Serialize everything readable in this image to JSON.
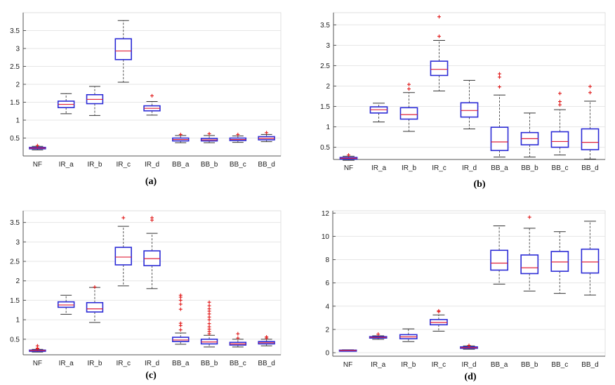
{
  "colors": {
    "box": "#2b2bd6",
    "median": "#e0203a",
    "outlier": "#e01818",
    "whisker": "#555555",
    "grid": "#e6e6e6",
    "axis": "#555555"
  },
  "chart_data": [
    {
      "type": "boxplot",
      "caption": "(a)",
      "categories": [
        "NF",
        "IR_a",
        "IR_b",
        "IR_c",
        "IR_d",
        "BB_a",
        "BB_b",
        "BB_c",
        "BB_d"
      ],
      "ylim": [
        0,
        4
      ],
      "yticks": [
        "0.5",
        "1",
        "1.5",
        "2",
        "2.5",
        "3",
        "3.5"
      ],
      "ytick_values": [
        0.5,
        1,
        1.5,
        2,
        2.5,
        3,
        3.5
      ],
      "grid": true,
      "boxes": [
        {
          "min": 0.17,
          "q1": 0.2,
          "median": 0.22,
          "q3": 0.24,
          "max": 0.27,
          "outliers": [
            0.29
          ]
        },
        {
          "min": 1.18,
          "q1": 1.35,
          "median": 1.44,
          "q3": 1.53,
          "max": 1.74,
          "outliers": []
        },
        {
          "min": 1.13,
          "q1": 1.46,
          "median": 1.58,
          "q3": 1.71,
          "max": 1.94,
          "outliers": []
        },
        {
          "min": 2.06,
          "q1": 2.69,
          "median": 2.93,
          "q3": 3.27,
          "max": 3.78,
          "outliers": []
        },
        {
          "min": 1.14,
          "q1": 1.26,
          "median": 1.33,
          "q3": 1.4,
          "max": 1.52,
          "outliers": [
            1.68
          ]
        },
        {
          "min": 0.37,
          "q1": 0.42,
          "median": 0.46,
          "q3": 0.5,
          "max": 0.57,
          "outliers": [
            0.6
          ]
        },
        {
          "min": 0.37,
          "q1": 0.42,
          "median": 0.45,
          "q3": 0.49,
          "max": 0.57,
          "outliers": [
            0.62
          ]
        },
        {
          "min": 0.38,
          "q1": 0.43,
          "median": 0.46,
          "q3": 0.5,
          "max": 0.56,
          "outliers": [
            0.6
          ]
        },
        {
          "min": 0.4,
          "q1": 0.45,
          "median": 0.49,
          "q3": 0.54,
          "max": 0.6,
          "outliers": [
            0.65
          ]
        }
      ]
    },
    {
      "type": "boxplot",
      "caption": "(b)",
      "categories": [
        "NF",
        "IR_a",
        "IR_b",
        "IR_c",
        "IR_d",
        "BB_a",
        "BB_b",
        "BB_c",
        "BB_d"
      ],
      "ylim": [
        0.2,
        3.8
      ],
      "yticks": [
        "0.5",
        "1",
        "1.5",
        "2",
        "2.5",
        "3",
        "3.5"
      ],
      "ytick_values": [
        0.5,
        1,
        1.5,
        2,
        2.5,
        3,
        3.5
      ],
      "grid": true,
      "boxes": [
        {
          "min": 0.18,
          "q1": 0.21,
          "median": 0.23,
          "q3": 0.25,
          "max": 0.28,
          "outliers": [
            0.31
          ]
        },
        {
          "min": 1.12,
          "q1": 1.34,
          "median": 1.42,
          "q3": 1.49,
          "max": 1.58,
          "outliers": []
        },
        {
          "min": 0.89,
          "q1": 1.19,
          "median": 1.3,
          "q3": 1.47,
          "max": 1.84,
          "outliers": [
            1.93,
            2.04
          ]
        },
        {
          "min": 1.88,
          "q1": 2.26,
          "median": 2.41,
          "q3": 2.61,
          "max": 3.12,
          "outliers": [
            3.22,
            3.7
          ]
        },
        {
          "min": 0.95,
          "q1": 1.24,
          "median": 1.4,
          "q3": 1.59,
          "max": 2.14,
          "outliers": []
        },
        {
          "min": 0.26,
          "q1": 0.42,
          "median": 0.63,
          "q3": 0.99,
          "max": 1.78,
          "outliers": [
            1.98,
            2.22,
            2.3
          ]
        },
        {
          "min": 0.26,
          "q1": 0.56,
          "median": 0.71,
          "q3": 0.86,
          "max": 1.34,
          "outliers": []
        },
        {
          "min": 0.31,
          "q1": 0.5,
          "median": 0.64,
          "q3": 0.88,
          "max": 1.42,
          "outliers": [
            1.54,
            1.62,
            1.82
          ]
        },
        {
          "min": 0.21,
          "q1": 0.44,
          "median": 0.62,
          "q3": 0.95,
          "max": 1.63,
          "outliers": [
            1.84,
            1.99
          ]
        }
      ]
    },
    {
      "type": "boxplot",
      "caption": "(c)",
      "categories": [
        "NF",
        "IR_a",
        "IR_b",
        "IR_c",
        "IR_d",
        "BB_a",
        "BB_b",
        "BB_c",
        "BB_d"
      ],
      "ylim": [
        0.1,
        3.8
      ],
      "yticks": [
        "0.5",
        "1",
        "1.5",
        "2",
        "2.5",
        "3",
        "3.5"
      ],
      "ytick_values": [
        0.5,
        1,
        1.5,
        2,
        2.5,
        3,
        3.5
      ],
      "grid": true,
      "boxes": [
        {
          "min": 0.17,
          "q1": 0.19,
          "median": 0.21,
          "q3": 0.22,
          "max": 0.24,
          "outliers": [
            0.25,
            0.27,
            0.33
          ]
        },
        {
          "min": 1.14,
          "q1": 1.32,
          "median": 1.38,
          "q3": 1.46,
          "max": 1.63,
          "outliers": []
        },
        {
          "min": 0.93,
          "q1": 1.2,
          "median": 1.28,
          "q3": 1.44,
          "max": 1.83,
          "outliers": [
            1.84
          ]
        },
        {
          "min": 1.87,
          "q1": 2.41,
          "median": 2.61,
          "q3": 2.86,
          "max": 3.4,
          "outliers": [
            3.62
          ]
        },
        {
          "min": 1.8,
          "q1": 2.39,
          "median": 2.57,
          "q3": 2.77,
          "max": 3.22,
          "outliers": [
            3.56,
            3.62
          ]
        },
        {
          "min": 0.37,
          "q1": 0.44,
          "median": 0.48,
          "q3": 0.55,
          "max": 0.66,
          "outliers": [
            0.74,
            0.85,
            0.91,
            1.27,
            1.4,
            1.5,
            1.58,
            1.63
          ]
        },
        {
          "min": 0.3,
          "q1": 0.38,
          "median": 0.43,
          "q3": 0.5,
          "max": 0.6,
          "outliers": [
            0.64,
            0.7,
            0.76,
            0.82,
            0.9,
            1.0,
            1.07,
            1.15,
            1.22,
            1.28,
            1.36,
            1.45
          ]
        },
        {
          "min": 0.3,
          "q1": 0.35,
          "median": 0.38,
          "q3": 0.42,
          "max": 0.5,
          "outliers": [
            0.53,
            0.64
          ]
        },
        {
          "min": 0.33,
          "q1": 0.38,
          "median": 0.41,
          "q3": 0.44,
          "max": 0.5,
          "outliers": [
            0.53,
            0.56
          ]
        }
      ]
    },
    {
      "type": "boxplot",
      "caption": "(d)",
      "categories": [
        "NF",
        "IR_a",
        "IR_b",
        "IR_c",
        "IR_d",
        "BB_a",
        "BB_b",
        "BB_c",
        "BB_d"
      ],
      "ylim": [
        -0.3,
        12.2
      ],
      "yticks": [
        "0",
        "2",
        "4",
        "6",
        "8",
        "10",
        "12"
      ],
      "ytick_values": [
        0,
        2,
        4,
        6,
        8,
        10,
        12
      ],
      "grid": true,
      "boxes": [
        {
          "min": 0.15,
          "q1": 0.18,
          "median": 0.2,
          "q3": 0.22,
          "max": 0.25,
          "outliers": []
        },
        {
          "min": 1.15,
          "q1": 1.26,
          "median": 1.32,
          "q3": 1.38,
          "max": 1.45,
          "outliers": [
            1.6
          ]
        },
        {
          "min": 0.95,
          "q1": 1.2,
          "median": 1.36,
          "q3": 1.55,
          "max": 2.05,
          "outliers": []
        },
        {
          "min": 1.85,
          "q1": 2.4,
          "median": 2.6,
          "q3": 2.85,
          "max": 3.25,
          "outliers": [
            3.52,
            3.6
          ]
        },
        {
          "min": 0.3,
          "q1": 0.38,
          "median": 0.43,
          "q3": 0.5,
          "max": 0.58,
          "outliers": [
            0.63
          ]
        },
        {
          "min": 5.9,
          "q1": 7.1,
          "median": 7.7,
          "q3": 8.8,
          "max": 10.9,
          "outliers": []
        },
        {
          "min": 5.3,
          "q1": 6.8,
          "median": 7.3,
          "q3": 8.4,
          "max": 10.7,
          "outliers": [
            11.65
          ]
        },
        {
          "min": 5.1,
          "q1": 7.0,
          "median": 7.8,
          "q3": 8.7,
          "max": 10.4,
          "outliers": []
        },
        {
          "min": 4.95,
          "q1": 6.85,
          "median": 7.8,
          "q3": 8.9,
          "max": 11.3,
          "outliers": []
        }
      ]
    }
  ]
}
